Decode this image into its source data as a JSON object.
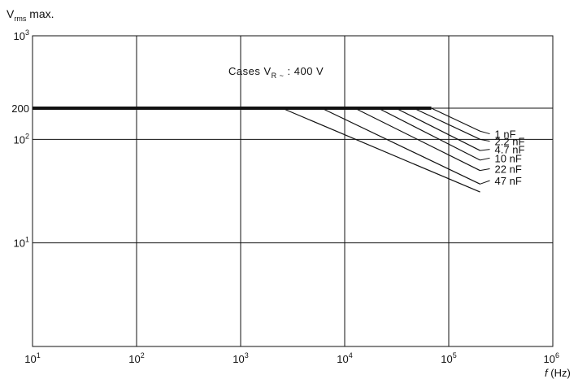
{
  "chart_data": {
    "type": "line",
    "title": "",
    "ylabel": {
      "main": "V",
      "sub": "rms",
      "rest": " max."
    },
    "xlabel": {
      "italic": "f",
      "rest": " (Hz)"
    },
    "annotation": {
      "pre": "Cases V",
      "sub": "R ~",
      "post": " : 400 V"
    },
    "x_scale": "log",
    "y_scale": "log",
    "xlim": [
      10,
      1000000
    ],
    "ylim": [
      1,
      1000
    ],
    "grid": true,
    "x_ticks": [
      {
        "value": 10,
        "base": "10",
        "exp": "1"
      },
      {
        "value": 100,
        "base": "10",
        "exp": "2"
      },
      {
        "value": 1000,
        "base": "10",
        "exp": "3"
      },
      {
        "value": 10000,
        "base": "10",
        "exp": "4"
      },
      {
        "value": 100000,
        "base": "10",
        "exp": "5"
      },
      {
        "value": 1000000,
        "base": "10",
        "exp": "6"
      }
    ],
    "y_ticks": [
      {
        "value": 1000,
        "base": "10",
        "exp": "3"
      },
      {
        "value": 200,
        "base": "200",
        "exp": ""
      },
      {
        "value": 100,
        "base": "10",
        "exp": "2"
      },
      {
        "value": 10,
        "base": "10",
        "exp": "1"
      }
    ],
    "y_gridlines": [
      1000,
      200,
      100,
      10
    ],
    "flat_value": 200,
    "flat_from": 10,
    "series": [
      {
        "name": "1 nF",
        "points": [
          [
            68000,
            200
          ],
          [
            200000,
            120
          ]
        ]
      },
      {
        "name": "2.2 nF",
        "points": [
          [
            46000,
            200
          ],
          [
            200000,
            100
          ]
        ]
      },
      {
        "name": "4.7 nF",
        "points": [
          [
            31000,
            200
          ],
          [
            200000,
            78
          ]
        ]
      },
      {
        "name": "10 nF",
        "points": [
          [
            21000,
            200
          ],
          [
            200000,
            63
          ]
        ]
      },
      {
        "name": "22 nF",
        "points": [
          [
            12500,
            200
          ],
          [
            200000,
            50
          ]
        ]
      },
      {
        "name": "47 nF",
        "points": [
          [
            6000,
            200
          ],
          [
            200000,
            37
          ]
        ]
      },
      {
        "name": "",
        "points": [
          [
            2500,
            200
          ],
          [
            200000,
            31
          ]
        ]
      }
    ],
    "label_leaders": [
      {
        "series": 0,
        "to_y": 113
      },
      {
        "series": 1,
        "to_y": 96
      },
      {
        "series": 2,
        "to_y": 80
      },
      {
        "series": 3,
        "to_y": 66
      },
      {
        "series": 4,
        "to_y": 52
      },
      {
        "series": 5,
        "to_y": 40
      }
    ]
  }
}
